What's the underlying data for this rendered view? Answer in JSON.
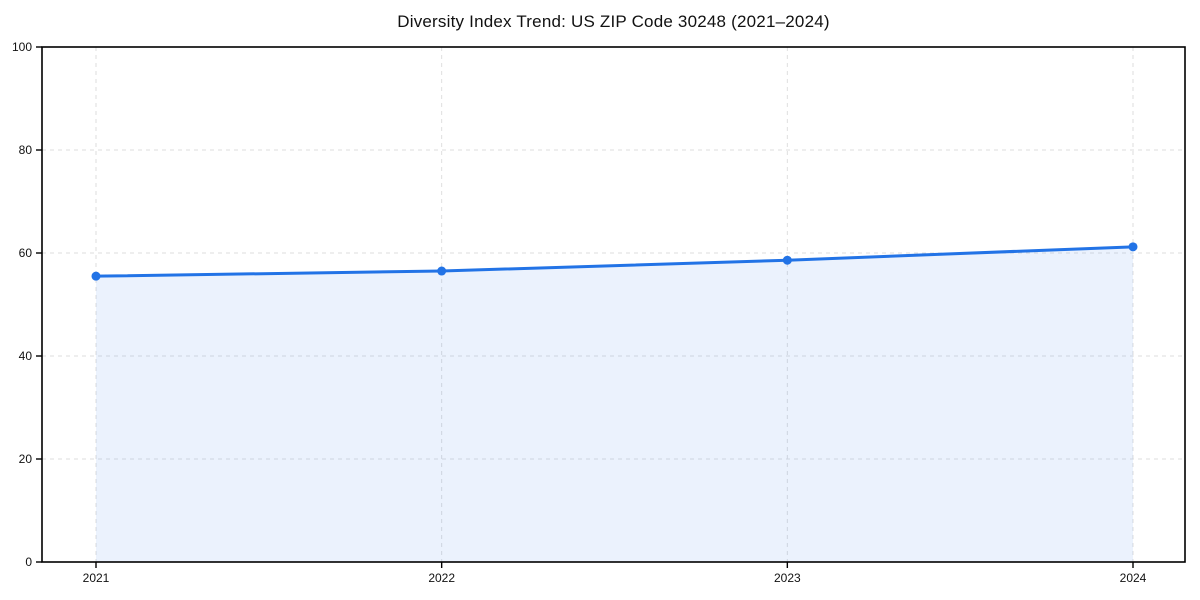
{
  "page": {
    "background": "#ffffff"
  },
  "chart_data": {
    "type": "line",
    "title": "Diversity Index Trend: US ZIP Code 30248 (2021–2024)",
    "categories": [
      "2021",
      "2022",
      "2023",
      "2024"
    ],
    "series": [
      {
        "name": "Diversity Index",
        "values": [
          55.5,
          56.5,
          58.6,
          61.2
        ]
      }
    ],
    "xlabel": "",
    "ylabel": "",
    "ylim": [
      0,
      100
    ],
    "yticks": [
      0,
      20,
      40,
      60,
      80,
      100
    ],
    "grid": true,
    "grid_style": "dashed",
    "legend": "none",
    "area_fill": true,
    "marker": "circle",
    "line_color": "#2273e6",
    "fill_opacity": 0.09,
    "grid_color": "#dedede",
    "axis_color": "#000000",
    "tick_label_color": "#111111"
  }
}
